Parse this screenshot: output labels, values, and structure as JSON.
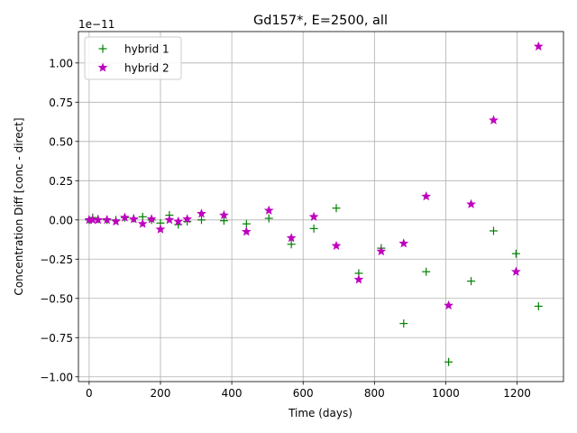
{
  "chart_data": {
    "type": "scatter",
    "title": "Gd157*, E=2500, all",
    "xlabel": "Time (days)",
    "ylabel": "Concentration Diff [conc - direct]",
    "offset_label": "1e−11",
    "xlim": [
      -30,
      1330
    ],
    "ylim": [
      -10.3,
      12.0
    ],
    "xticks": [
      0,
      200,
      400,
      600,
      800,
      1000,
      1200
    ],
    "xtick_labels": [
      "0",
      "200",
      "400",
      "600",
      "800",
      "1000",
      "1200"
    ],
    "yticks": [
      -10,
      -7.5,
      -5,
      -2.5,
      0,
      2.5,
      5,
      7.5,
      10
    ],
    "ytick_labels": [
      "−1.00",
      "−0.75",
      "−0.50",
      "−0.25",
      "0.00",
      "0.25",
      "0.50",
      "0.75",
      "1.00"
    ],
    "grid": true,
    "legend_position": "top-left",
    "series": [
      {
        "name": "hybrid 1",
        "marker": "plus",
        "color": "#008000",
        "x": [
          0,
          10,
          25,
          50,
          75,
          100,
          125,
          150,
          175,
          200,
          225,
          250,
          275,
          315,
          378,
          441,
          504,
          567,
          630,
          693,
          756,
          819,
          882,
          945,
          1008,
          1071,
          1134,
          1197,
          1260
        ],
        "y": [
          0.0,
          0.15,
          0.05,
          0.0,
          0.0,
          0.15,
          0.1,
          0.2,
          0.0,
          -0.2,
          0.3,
          -0.3,
          -0.1,
          0.0,
          -0.05,
          -0.25,
          0.1,
          -1.55,
          -0.55,
          0.75,
          -3.4,
          -1.8,
          -6.6,
          -3.3,
          -9.05,
          -3.9,
          -0.7,
          -2.15,
          -5.5
        ]
      },
      {
        "name": "hybrid 2",
        "marker": "star",
        "color": "#bf00bf",
        "x": [
          0,
          10,
          25,
          50,
          75,
          100,
          125,
          150,
          175,
          200,
          225,
          250,
          275,
          315,
          378,
          441,
          504,
          567,
          630,
          693,
          756,
          819,
          882,
          945,
          1008,
          1071,
          1134,
          1197,
          1260
        ],
        "y": [
          0.0,
          0.0,
          0.0,
          0.0,
          -0.1,
          0.15,
          0.05,
          -0.25,
          0.05,
          -0.6,
          0.0,
          -0.1,
          0.05,
          0.4,
          0.3,
          -0.75,
          0.6,
          -1.15,
          0.2,
          -1.65,
          -3.8,
          -2.0,
          -1.5,
          1.5,
          -5.45,
          1.0,
          6.35,
          -3.3,
          11.05
        ]
      }
    ]
  }
}
